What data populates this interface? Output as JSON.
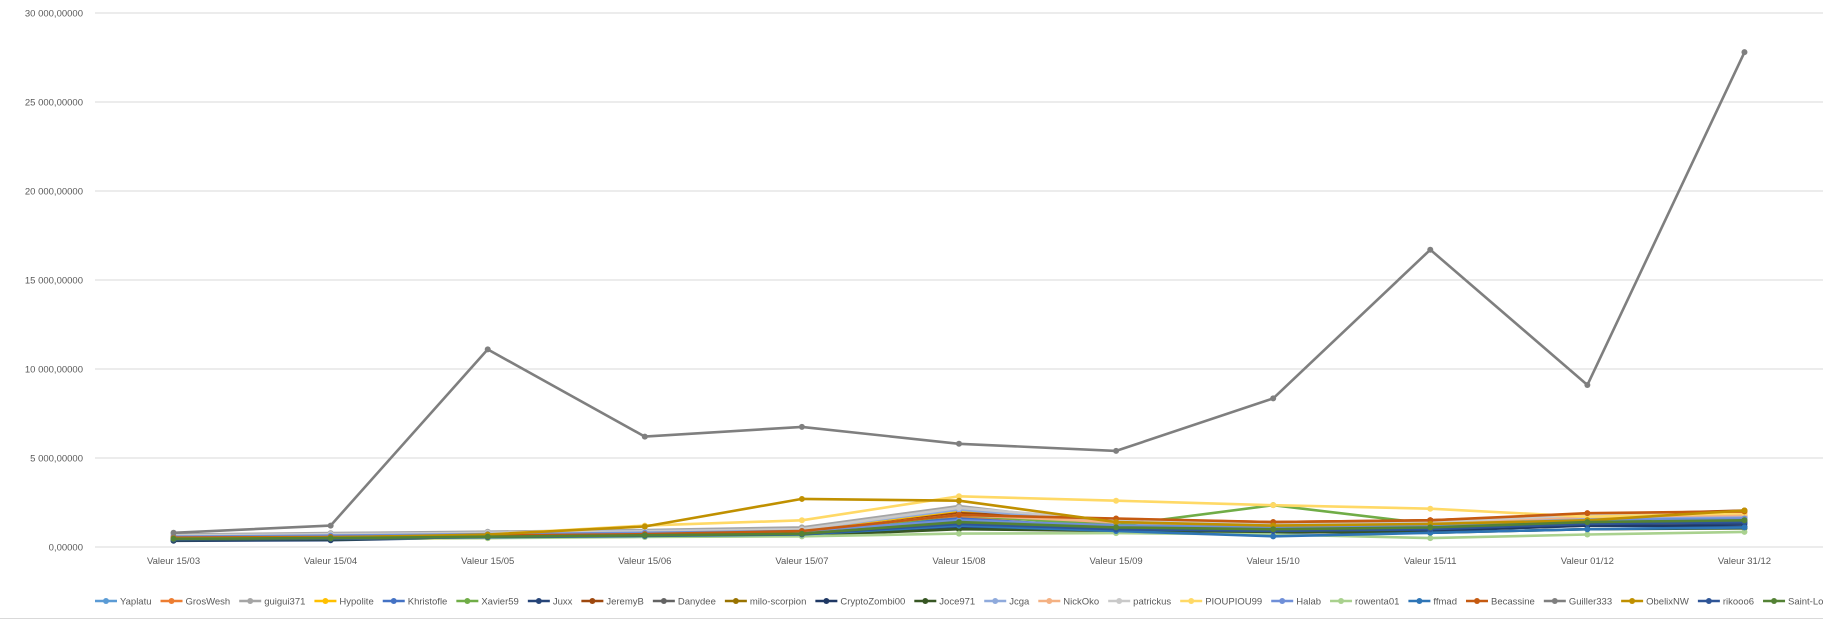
{
  "chart_data": {
    "type": "line",
    "title": "",
    "xlabel": "",
    "ylabel": "",
    "ylim": [
      0,
      30000
    ],
    "y_ticks": [
      0,
      5000,
      10000,
      15000,
      20000,
      25000,
      30000
    ],
    "y_tick_labels": [
      "0,00000",
      "5 000,00000",
      "10 000,00000",
      "15 000,00000",
      "20 000,00000",
      "25 000,00000",
      "30 000,00000"
    ],
    "grid": true,
    "legend_position": "bottom",
    "markers": true,
    "categories": [
      "Valeur 15/03",
      "Valeur 15/04",
      "Valeur 15/05",
      "Valeur 15/06",
      "Valeur 15/07",
      "Valeur 15/08",
      "Valeur 15/09",
      "Valeur 15/10",
      "Valeur 15/11",
      "Valeur 01/12",
      "Valeur 31/12"
    ],
    "series": [
      {
        "name": "Yaplatu",
        "color": "#5B9BD5",
        "values": [
          550,
          620,
          700,
          780,
          850,
          1900,
          1200,
          1000,
          1300,
          1500,
          1600
        ]
      },
      {
        "name": "GrosWesh",
        "color": "#ED7D31",
        "values": [
          500,
          560,
          650,
          720,
          800,
          1700,
          1350,
          1300,
          1500,
          1800,
          1900
        ]
      },
      {
        "name": "guigui371",
        "color": "#A5A5A5",
        "values": [
          700,
          780,
          860,
          950,
          1100,
          2300,
          1300,
          1200,
          1400,
          1700,
          1600
        ]
      },
      {
        "name": "Hypolite",
        "color": "#FFC000",
        "values": [
          400,
          450,
          500,
          700,
          1000,
          2000,
          1400,
          1200,
          1100,
          1300,
          1400
        ]
      },
      {
        "name": "Khristofle",
        "color": "#4472C4",
        "values": [
          600,
          650,
          720,
          800,
          900,
          1600,
          1100,
          1000,
          1200,
          1400,
          1500
        ]
      },
      {
        "name": "Xavier59",
        "color": "#70AD47",
        "values": [
          450,
          500,
          600,
          680,
          750,
          1800,
          1200,
          2350,
          1300,
          1600,
          1700
        ]
      },
      {
        "name": "Juxx",
        "color": "#264478",
        "values": [
          350,
          380,
          550,
          600,
          650,
          1100,
          900,
          800,
          900,
          1200,
          1300
        ]
      },
      {
        "name": "JeremyB",
        "color": "#9E480E",
        "values": [
          480,
          520,
          580,
          650,
          800,
          1900,
          1550,
          1400,
          1500,
          1800,
          2050
        ]
      },
      {
        "name": "Danydee",
        "color": "#636363",
        "values": [
          420,
          470,
          560,
          640,
          720,
          1200,
          1000,
          900,
          1000,
          1300,
          1100
        ]
      },
      {
        "name": "milo-scorpion",
        "color": "#997300",
        "values": [
          520,
          580,
          650,
          720,
          780,
          1400,
          1100,
          1000,
          1100,
          1500,
          1700
        ]
      },
      {
        "name": "CryptoZombi00",
        "color": "#1F3864",
        "values": [
          380,
          420,
          540,
          600,
          680,
          1300,
          1000,
          900,
          950,
          1200,
          1150
        ]
      },
      {
        "name": "Joce971",
        "color": "#375623",
        "values": [
          400,
          440,
          520,
          580,
          640,
          1000,
          900,
          850,
          800,
          1000,
          1050
        ]
      },
      {
        "name": "Jcga",
        "color": "#8FAADC",
        "values": [
          620,
          700,
          800,
          900,
          1000,
          2100,
          1400,
          1200,
          1300,
          1600,
          1700
        ]
      },
      {
        "name": "NickOko",
        "color": "#F4B183",
        "values": [
          560,
          620,
          700,
          780,
          900,
          1800,
          1400,
          1300,
          1400,
          1700,
          1800
        ]
      },
      {
        "name": "patrickus",
        "color": "#C9C9C9",
        "values": [
          650,
          720,
          800,
          880,
          1000,
          2200,
          1500,
          1300,
          1400,
          1800,
          1900
        ]
      },
      {
        "name": "PIOUPIOU99",
        "color": "#FFD966",
        "values": [
          500,
          560,
          700,
          1200,
          1500,
          2850,
          2600,
          2350,
          2150,
          1700,
          1900
        ]
      },
      {
        "name": "Halab",
        "color": "#6F8FD8",
        "values": [
          580,
          640,
          720,
          800,
          900,
          1500,
          1200,
          1100,
          1200,
          1500,
          1600
        ]
      },
      {
        "name": "rowenta01",
        "color": "#A9D18E",
        "values": [
          450,
          480,
          500,
          560,
          600,
          750,
          780,
          700,
          500,
          700,
          850
        ]
      },
      {
        "name": "ffmad",
        "color": "#2E75B6",
        "values": [
          430,
          470,
          550,
          620,
          700,
          1200,
          900,
          600,
          800,
          1000,
          1100
        ]
      },
      {
        "name": "Becassine",
        "color": "#C55A11",
        "values": [
          520,
          560,
          640,
          720,
          900,
          1800,
          1600,
          1400,
          1500,
          1900,
          2000
        ]
      },
      {
        "name": "Guiller333",
        "color": "#7F7F7F",
        "values": [
          800,
          1200,
          11100,
          6200,
          6750,
          5800,
          5400,
          8350,
          16700,
          9100,
          27800
        ]
      },
      {
        "name": "ObelixNW",
        "color": "#C09000",
        "values": [
          480,
          530,
          700,
          1150,
          2700,
          2600,
          1400,
          1200,
          1300,
          1500,
          2050
        ]
      },
      {
        "name": "rikooo6",
        "color": "#2F5597",
        "values": [
          420,
          460,
          560,
          640,
          720,
          1300,
          1000,
          900,
          1000,
          1300,
          1400
        ]
      },
      {
        "name": "Saint-Loup",
        "color": "#548235",
        "values": [
          460,
          500,
          580,
          660,
          740,
          1400,
          1100,
          1000,
          1100,
          1400,
          1500
        ]
      }
    ]
  }
}
